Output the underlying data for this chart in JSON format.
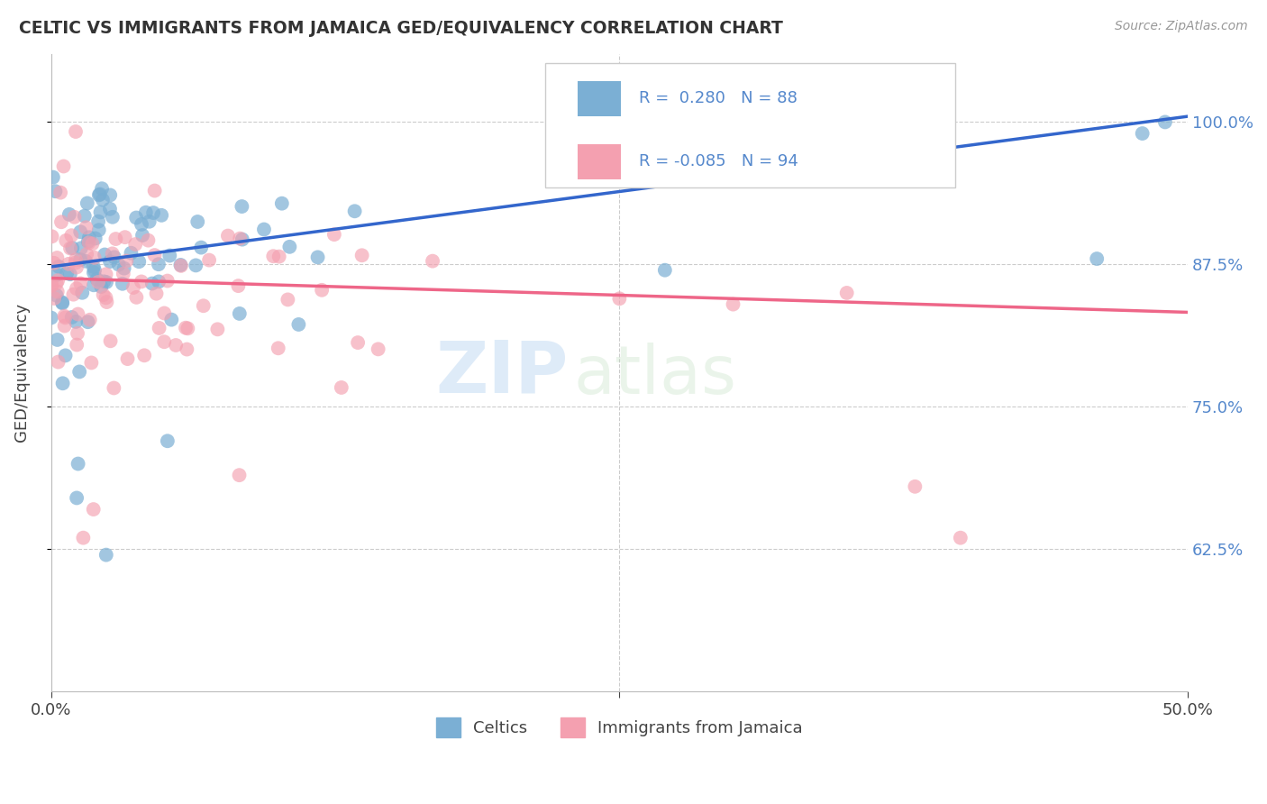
{
  "title": "CELTIC VS IMMIGRANTS FROM JAMAICA GED/EQUIVALENCY CORRELATION CHART",
  "source": "Source: ZipAtlas.com",
  "ylabel": "GED/Equivalency",
  "xlim": [
    0.0,
    0.5
  ],
  "ylim": [
    0.5,
    1.06
  ],
  "ytick_positions": [
    0.625,
    0.75,
    0.875,
    1.0
  ],
  "ytick_labels": [
    "62.5%",
    "75.0%",
    "87.5%",
    "100.0%"
  ],
  "blue_R": 0.28,
  "blue_N": 88,
  "pink_R": -0.085,
  "pink_N": 94,
  "blue_color": "#7BAFD4",
  "pink_color": "#F4A0B0",
  "blue_line_color": "#3366CC",
  "pink_line_color": "#EE6688",
  "watermark_zip": "ZIP",
  "watermark_atlas": "atlas",
  "background_color": "#FFFFFF",
  "grid_color": "#CCCCCC",
  "blue_line_x0": 0.0,
  "blue_line_y0": 0.873,
  "blue_line_x1": 0.5,
  "blue_line_y1": 1.005,
  "pink_line_x0": 0.0,
  "pink_line_y0": 0.863,
  "pink_line_x1": 0.5,
  "pink_line_y1": 0.833
}
